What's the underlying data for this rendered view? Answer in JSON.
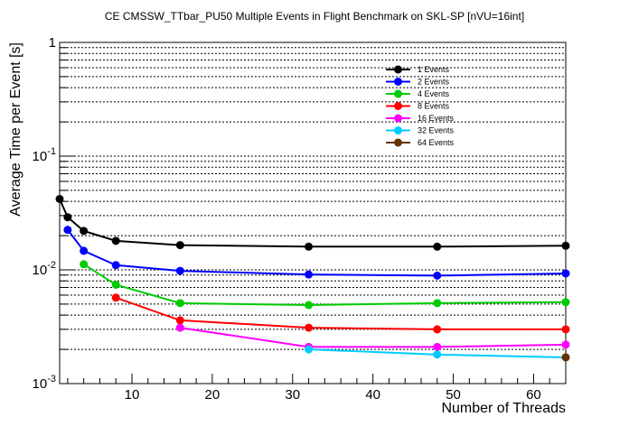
{
  "chart_data": {
    "type": "line",
    "title": "CE CMSSW_TTbar_PU50 Multiple Events in Flight Benchmark on SKL-SP [nVU=16int]",
    "xlabel": "Number of Threads",
    "ylabel": "Average Time per Event [s]",
    "xlim": [
      1,
      64
    ],
    "ylim": [
      0.001,
      1
    ],
    "yscale": "log",
    "grid": {
      "x": false,
      "y": true
    },
    "legend_position": "top-right",
    "x_ticks": [
      10,
      20,
      30,
      40,
      50,
      60
    ],
    "x_tick_labels": [
      "10",
      "20",
      "30",
      "40",
      "50",
      "60"
    ],
    "y_ticks": [
      0.001,
      0.01,
      0.1,
      1
    ],
    "y_tick_labels": [
      {
        "base": "10",
        "exp": "-3"
      },
      {
        "base": "10",
        "exp": "-2"
      },
      {
        "base": "10",
        "exp": "-1"
      },
      {
        "base": "1",
        "exp": ""
      }
    ],
    "series": [
      {
        "name": "1 Events",
        "color": "#000000",
        "x": [
          1,
          2,
          4,
          8,
          16,
          32,
          48,
          64
        ],
        "values": [
          0.042,
          0.029,
          0.022,
          0.018,
          0.0165,
          0.016,
          0.016,
          0.0163
        ]
      },
      {
        "name": "2 Events",
        "color": "#0000ff",
        "x": [
          2,
          4,
          8,
          16,
          32,
          48,
          64
        ],
        "values": [
          0.0225,
          0.0147,
          0.011,
          0.0098,
          0.0091,
          0.0089,
          0.0093
        ]
      },
      {
        "name": "4 Events",
        "color": "#00cc00",
        "x": [
          4,
          8,
          16,
          32,
          48,
          64
        ],
        "values": [
          0.0112,
          0.0074,
          0.0051,
          0.0049,
          0.0051,
          0.0052
        ]
      },
      {
        "name": "8 Events",
        "color": "#ff0000",
        "x": [
          8,
          16,
          32,
          48,
          64
        ],
        "values": [
          0.0057,
          0.0036,
          0.0031,
          0.003,
          0.003
        ]
      },
      {
        "name": "16 Events",
        "color": "#ff00ff",
        "x": [
          16,
          32,
          48,
          64
        ],
        "values": [
          0.0031,
          0.0021,
          0.0021,
          0.0022
        ]
      },
      {
        "name": "32 Events",
        "color": "#00ccff",
        "x": [
          32,
          48,
          64
        ],
        "values": [
          0.002,
          0.0018,
          0.0017
        ]
      },
      {
        "name": "64 Events",
        "color": "#663300",
        "x": [
          64
        ],
        "values": [
          0.0017
        ]
      }
    ]
  }
}
